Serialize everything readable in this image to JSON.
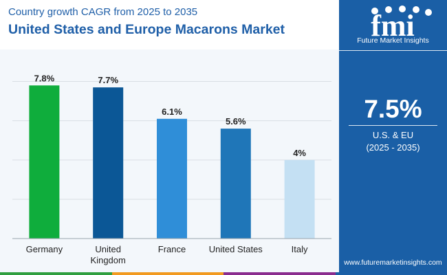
{
  "header": {
    "subtitle": "Country growth CAGR from 2025 to 2035",
    "title": "United States and Europe Macarons Market"
  },
  "sidebar": {
    "logo_name": "fmi",
    "logo_text": "Future Market Insights",
    "cagr_value": "7.5%",
    "region": "U.S. & EU",
    "period": "(2025 - 2035)",
    "website": "www.futuremarketinsights.com"
  },
  "colors": {
    "brand_blue": "#1a5fa6",
    "strip": [
      "#2f9f3f",
      "#f29a1f",
      "#8a2c8e",
      "#1a5fa6"
    ]
  },
  "chart_data": {
    "type": "bar",
    "title": "United States and Europe Macarons Market",
    "subtitle": "Country growth CAGR from 2025 to 2035",
    "xlabel": "",
    "ylabel": "",
    "ylim": [
      0,
      9
    ],
    "grid": true,
    "categories": [
      "Germany",
      "United Kingdom",
      "France",
      "United States",
      "Italy"
    ],
    "category_lines": [
      [
        "Germany"
      ],
      [
        "United",
        "Kingdom"
      ],
      [
        "France"
      ],
      [
        "United States"
      ],
      [
        "Italy"
      ]
    ],
    "values": [
      7.8,
      7.7,
      6.1,
      5.6,
      4.0
    ],
    "value_labels": [
      "7.8%",
      "7.7%",
      "6.1%",
      "5.6%",
      "4%"
    ],
    "bar_colors": [
      "#0fad3c",
      "#0b5796",
      "#2f8ed8",
      "#1f76b8",
      "#c4e0f3"
    ]
  }
}
